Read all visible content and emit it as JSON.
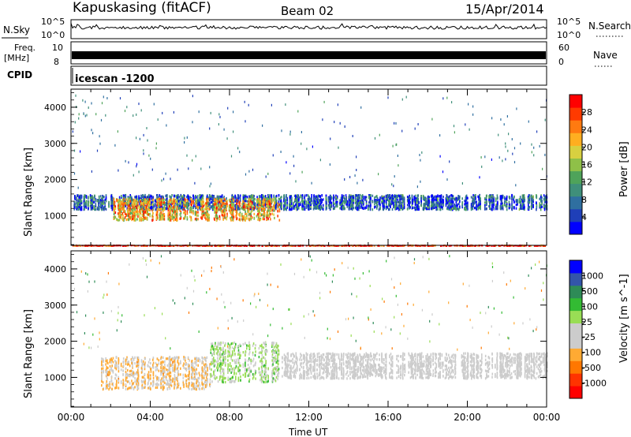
{
  "header": {
    "station": "Kapuskasing (fitACF)",
    "beam": "Beam 02",
    "date": "15/Apr/2014"
  },
  "top_panels": {
    "nsky_label": "N.Sky",
    "nsearch_label": "N.Search",
    "nsky_ticks": [
      "10^5",
      "10^0"
    ],
    "nsearch_ticks": [
      "10^5",
      "10^0"
    ],
    "freq_label": "Freq.",
    "freq_unit": "[MHz]",
    "freq_ticks": [
      "10",
      "8"
    ],
    "nave_label": "Nave",
    "nave_ticks": [
      "60",
      "0"
    ],
    "cpid_label": "CPID",
    "cpid_value": "icescan -1200"
  },
  "chart_data": [
    {
      "type": "heatmap",
      "panel": "power",
      "ylabel": "Slant Range [km]",
      "ylim": [
        180,
        4500
      ],
      "y_ticks": [
        "1000",
        "2000",
        "3000",
        "4000"
      ],
      "colorbar_label": "Power [dB]",
      "colorbar_ticks": [
        "28",
        "24",
        "20",
        "16",
        "12",
        "8",
        "4"
      ],
      "colorscale": [
        "#0000ff",
        "#1f3fb8",
        "#2f6fa0",
        "#3f8f7a",
        "#4fa35a",
        "#8fc048",
        "#d8d040",
        "#ffae20",
        "#ff7a10",
        "#ff3a00",
        "#ff0000"
      ],
      "colorscale_range": [
        0,
        30
      ],
      "features": [
        {
          "desc": "ionospheric band",
          "time_h": [
            0,
            24
          ],
          "range_km": [
            1200,
            1600
          ],
          "level_db": 6
        },
        {
          "desc": "strong echoes",
          "time_h": [
            2,
            10.5
          ],
          "range_km": [
            900,
            1500
          ],
          "level_db": 20
        },
        {
          "desc": "near-range clutter",
          "time_h": [
            0,
            24
          ],
          "range_km": [
            180,
            200
          ],
          "level_db": 28
        }
      ]
    },
    {
      "type": "heatmap",
      "panel": "velocity",
      "xlabel": "Time UT",
      "ylabel": "Slant Range [km]",
      "ylim": [
        180,
        4500
      ],
      "y_ticks": [
        "1000",
        "2000",
        "3000",
        "4000"
      ],
      "x_ticks": [
        "00:00",
        "04:00",
        "08:00",
        "12:00",
        "16:00",
        "20:00",
        "00:00"
      ],
      "colorbar_label": "Velocity [m s^-1]",
      "colorbar_ticks": [
        "1000",
        "500",
        "100",
        "25",
        "-25",
        "-100",
        "-500",
        "-1000"
      ],
      "colorscale": [
        "#ff0000",
        "#ff3300",
        "#ff7700",
        "#ffaa33",
        "#cccccc",
        "#cccccc",
        "#99dd55",
        "#33bb33",
        "#2e8b57",
        "#3355aa",
        "#0000ff"
      ],
      "colorscale_range": [
        -1200,
        1200
      ],
      "features": [
        {
          "desc": "ground scatter",
          "time_h": [
            10.5,
            24
          ],
          "range_km": [
            1000,
            1700
          ],
          "velocity": 0
        },
        {
          "desc": "negative velocity echoes",
          "time_h": [
            1.5,
            7
          ],
          "range_km": [
            700,
            1600
          ],
          "velocity": -300
        },
        {
          "desc": "positive velocity echoes",
          "time_h": [
            7,
            10.5
          ],
          "range_km": [
            900,
            2000
          ],
          "velocity": 150
        }
      ]
    }
  ]
}
